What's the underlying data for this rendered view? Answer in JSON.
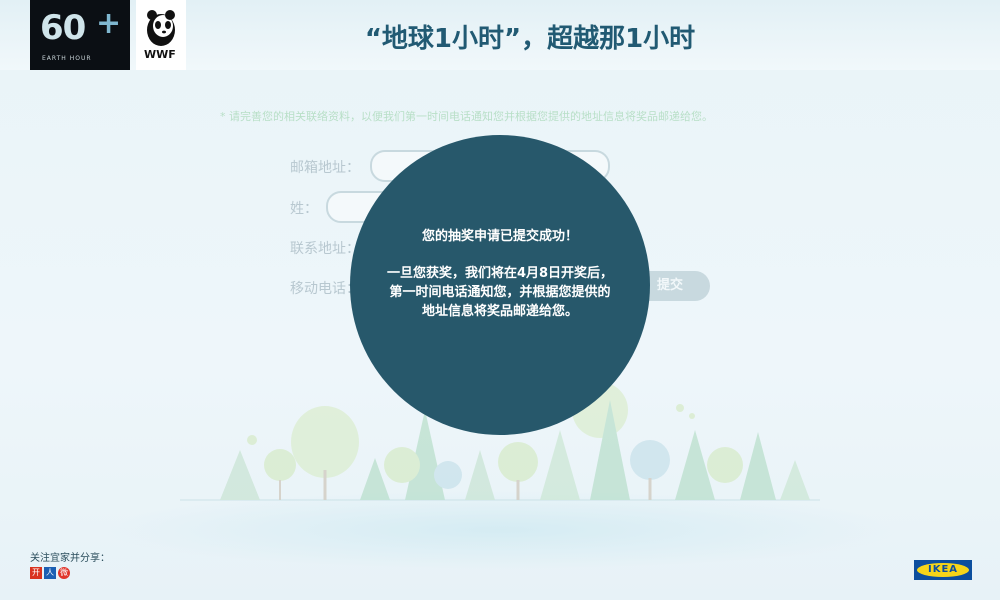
{
  "header": {
    "logo_main": "60",
    "logo_plus": "+",
    "logo_sub": "EARTH HOUR",
    "wwf_text": "WWF",
    "title": "“地球1小时”，超越那1小时"
  },
  "form": {
    "notice": "* 请完善您的相关联络资料，以便我们第一时间电话通知您并根据您提供的地址信息将奖品邮递给您。",
    "labels": {
      "email": "邮箱地址：",
      "surname": "姓：",
      "address": "联系地址：",
      "mobile": "移动电话："
    },
    "submit_label": "提交"
  },
  "modal": {
    "line1": "您的抽奖申请已提交成功！",
    "line2": "一旦您获奖，我们将在4月8日开奖后，",
    "line3": "第一时间电话通知您，并根据您提供的",
    "line4": "地址信息将奖品邮递给您。"
  },
  "footer": {
    "share_label": "关注宜家并分享：",
    "share_icons": [
      {
        "name": "kaixin-icon",
        "glyph": "开",
        "color": "#d9331f"
      },
      {
        "name": "renren-icon",
        "glyph": "人",
        "color": "#1b5fb3"
      },
      {
        "name": "weibo-icon",
        "glyph": "微",
        "color": "#e0352b"
      }
    ],
    "ikea_text": "IKEA"
  },
  "colors": {
    "accent": "#27586b",
    "title": "#215a73"
  }
}
